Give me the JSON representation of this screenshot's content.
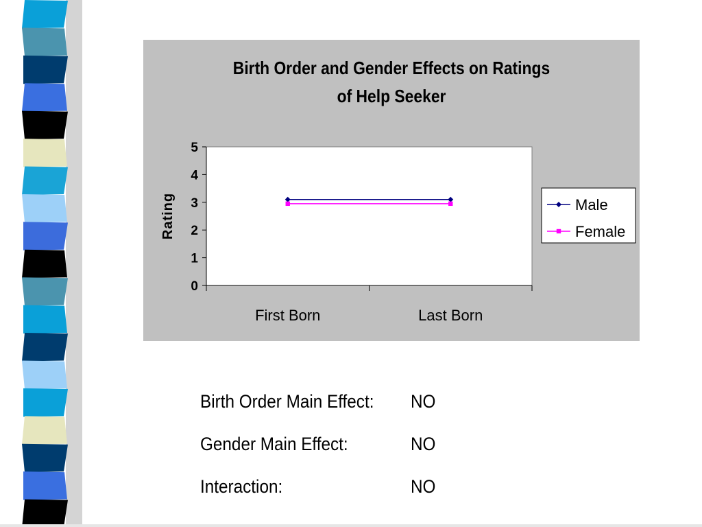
{
  "decoration": {
    "strip_colors": [
      "#0aa0d8",
      "#4b94ae",
      "#003c6e",
      "#3a6fe0",
      "#000000",
      "#e6e6be",
      "#1aa4d6",
      "#9dd0f8",
      "#3c6cdc",
      "#000000",
      "#4b94ae",
      "#0aa0d8",
      "#003c6e",
      "#9dd0f8",
      "#0aa0d8",
      "#e6e6be",
      "#003c6e",
      "#3a6fe0",
      "#000000"
    ]
  },
  "chart_data": {
    "type": "line",
    "title_lines": [
      "Birth Order and Gender Effects on Ratings",
      "of Help Seeker"
    ],
    "categories": [
      "First Born",
      "Last Born"
    ],
    "series": [
      {
        "name": "Male",
        "values": [
          3.1,
          3.1
        ],
        "color": "#000080",
        "marker": "diamond"
      },
      {
        "name": "Female",
        "values": [
          2.95,
          2.95
        ],
        "color": "#ff00ff",
        "marker": "square"
      }
    ],
    "xlabel": "",
    "ylabel": "Rating",
    "ylim": [
      0,
      5
    ],
    "yticks": [
      "0",
      "1",
      "2",
      "3",
      "4",
      "5"
    ],
    "grid": false,
    "legend_position": "right",
    "panel_color": "#c0c0c0",
    "plot_color": "#ffffff"
  },
  "effects": [
    {
      "label": "Birth Order Main Effect:",
      "value": "NO"
    },
    {
      "label": "Gender Main Effect:",
      "value": "NO"
    },
    {
      "label": "Interaction:",
      "value": "NO"
    }
  ]
}
